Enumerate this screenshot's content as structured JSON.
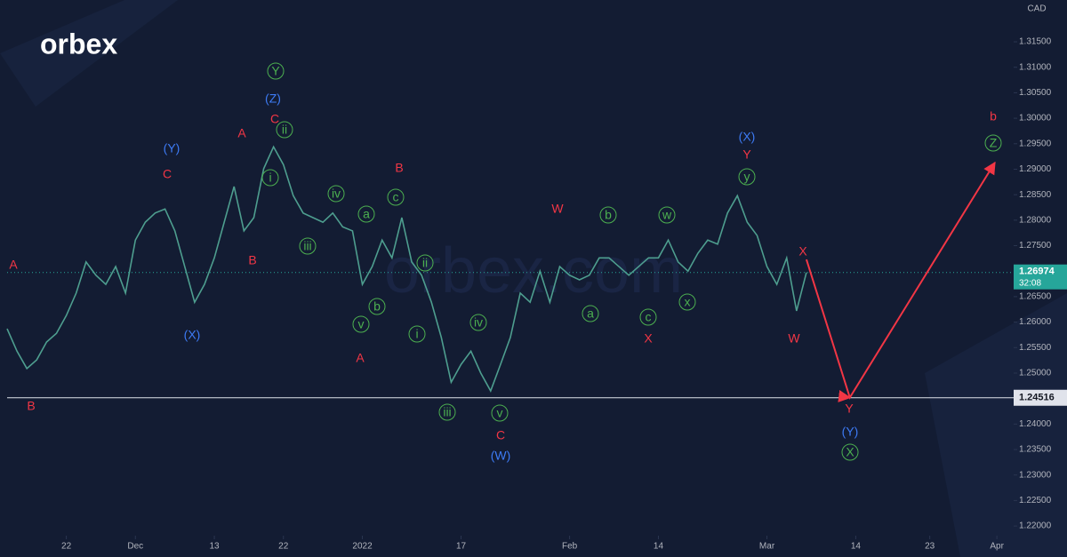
{
  "chart_data": {
    "type": "line",
    "brand": "orbex",
    "watermark": "orbex.com",
    "currency": "CAD",
    "x": [
      -6,
      -5,
      -4,
      -3,
      -2,
      -1,
      0,
      1,
      2,
      3,
      4,
      5,
      6,
      7,
      8,
      9,
      10,
      11,
      12,
      13,
      14,
      15,
      16,
      17,
      18,
      19,
      20,
      21,
      22,
      23,
      24,
      25,
      26,
      27,
      28,
      29,
      30,
      31,
      32,
      33,
      34,
      35,
      36,
      37,
      38,
      39,
      40,
      41,
      42,
      43,
      44,
      45,
      46,
      47,
      48,
      49,
      50,
      51,
      52,
      53,
      54,
      55,
      56,
      57,
      58,
      59,
      60,
      61,
      62,
      63,
      64,
      65,
      66,
      67,
      68,
      69,
      70,
      71,
      72,
      73,
      74,
      75
    ],
    "series": [
      {
        "color": "#4e9e8f",
        "values": [
          1.2587,
          1.2543,
          1.2509,
          1.2526,
          1.2561,
          1.2578,
          1.2613,
          1.2657,
          1.2718,
          1.2692,
          1.2674,
          1.2709,
          1.2657,
          1.2761,
          1.2796,
          1.2814,
          1.2822,
          1.2779,
          1.2709,
          1.2639,
          1.2674,
          1.2726,
          1.2796,
          1.2866,
          1.2779,
          1.2805,
          1.2901,
          1.2944,
          1.2909,
          1.2848,
          1.2814,
          1.2805,
          1.2796,
          1.2814,
          1.2787,
          1.2779,
          1.2674,
          1.2709,
          1.2761,
          1.2726,
          1.2805,
          1.2718,
          1.2692,
          1.2639,
          1.257,
          1.2482,
          1.2517,
          1.2543,
          1.25,
          1.2465,
          1.2517,
          1.257,
          1.2657,
          1.2639,
          1.27,
          1.2639,
          1.2709,
          1.2692,
          1.2683,
          1.2692,
          1.2726,
          1.2726,
          1.2709,
          1.2692,
          1.2709,
          1.2726,
          1.2726,
          1.2761,
          1.2718,
          1.27,
          1.2735,
          1.2761,
          1.2753,
          1.2814,
          1.2848,
          1.2796,
          1.277,
          1.2709,
          1.2674,
          1.2726,
          1.2622,
          1.26974
        ]
      }
    ],
    "forecast": {
      "color": "#f23645",
      "x": [
        75,
        79.4,
        94.1
      ],
      "values": [
        1.2723,
        1.2452,
        1.2913
      ]
    },
    "levels": [
      {
        "value": 1.24516,
        "label": "1.24516"
      }
    ],
    "current_price": {
      "value": 1.26974,
      "label": "1.26974",
      "countdown": "32:08",
      "color": "#26a69a"
    },
    "xlim": [
      -6,
      96
    ],
    "ylim": [
      1.2181,
      1.3232
    ],
    "xticks": [
      {
        "value": 0,
        "label": "22"
      },
      {
        "value": 7,
        "label": "Dec"
      },
      {
        "value": 15,
        "label": "13"
      },
      {
        "value": 22,
        "label": "22"
      },
      {
        "value": 30,
        "label": "2022"
      },
      {
        "value": 40,
        "label": "17"
      },
      {
        "value": 51,
        "label": "Feb"
      },
      {
        "value": 60,
        "label": "14"
      },
      {
        "value": 71,
        "label": "Mar"
      },
      {
        "value": 80,
        "label": "14"
      },
      {
        "value": 87.5,
        "label": "23"
      },
      {
        "value": 94.3,
        "label": "Apr"
      }
    ],
    "yticks": [
      {
        "value": 1.22,
        "label": "1.22000"
      },
      {
        "value": 1.225,
        "label": "1.22500"
      },
      {
        "value": 1.23,
        "label": "1.23000"
      },
      {
        "value": 1.235,
        "label": "1.23500"
      },
      {
        "value": 1.24,
        "label": "1.24000"
      },
      {
        "value": 1.25,
        "label": "1.25000"
      },
      {
        "value": 1.255,
        "label": "1.25500"
      },
      {
        "value": 1.26,
        "label": "1.26000"
      },
      {
        "value": 1.265,
        "label": "1.26500"
      },
      {
        "value": 1.275,
        "label": "1.27500"
      },
      {
        "value": 1.28,
        "label": "1.28000"
      },
      {
        "value": 1.285,
        "label": "1.28500"
      },
      {
        "value": 1.29,
        "label": "1.29000"
      },
      {
        "value": 1.295,
        "label": "1.29500"
      },
      {
        "value": 1.3,
        "label": "1.30000"
      },
      {
        "value": 1.305,
        "label": "1.30500"
      },
      {
        "value": 1.31,
        "label": "1.31000"
      },
      {
        "value": 1.315,
        "label": "1.31500"
      }
    ],
    "grid": false,
    "wave_labels": [
      {
        "text": "A",
        "color": "#f23645"
      },
      {
        "text": "B",
        "color": "#f23645"
      },
      {
        "text": "(Y)",
        "color": "#3d7bf5"
      },
      {
        "text": "C",
        "color": "#f23645"
      },
      {
        "text": "(X)",
        "color": "#3d7bf5"
      },
      {
        "text": "A",
        "color": "#f23645"
      },
      {
        "text": "B",
        "color": "#f23645"
      },
      {
        "text": "Y",
        "color": "#4caf50",
        "circled": true
      },
      {
        "text": "(Z)",
        "color": "#3d7bf5"
      },
      {
        "text": "C",
        "color": "#f23645"
      },
      {
        "text": "ii",
        "color": "#4caf50",
        "circled": true
      },
      {
        "text": "i",
        "color": "#4caf50",
        "circled": true
      },
      {
        "text": "iii",
        "color": "#4caf50",
        "circled": true
      },
      {
        "text": "iv",
        "color": "#4caf50",
        "circled": true
      },
      {
        "text": "a",
        "color": "#4caf50",
        "circled": true
      },
      {
        "text": "c",
        "color": "#4caf50",
        "circled": true
      },
      {
        "text": "B",
        "color": "#f23645"
      },
      {
        "text": "b",
        "color": "#4caf50",
        "circled": true
      },
      {
        "text": "v",
        "color": "#4caf50",
        "circled": true
      },
      {
        "text": "A",
        "color": "#f23645"
      },
      {
        "text": "ii",
        "color": "#4caf50",
        "circled": true
      },
      {
        "text": "i",
        "color": "#4caf50",
        "circled": true
      },
      {
        "text": "iv",
        "color": "#4caf50",
        "circled": true
      },
      {
        "text": "iii",
        "color": "#4caf50",
        "circled": true
      },
      {
        "text": "v",
        "color": "#4caf50",
        "circled": true
      },
      {
        "text": "C",
        "color": "#f23645"
      },
      {
        "text": "(W)",
        "color": "#3d7bf5"
      },
      {
        "text": "W",
        "color": "#f23645"
      },
      {
        "text": "b",
        "color": "#4caf50",
        "circled": true
      },
      {
        "text": "a",
        "color": "#4caf50",
        "circled": true
      },
      {
        "text": "w",
        "color": "#4caf50",
        "circled": true
      },
      {
        "text": "c",
        "color": "#4caf50",
        "circled": true
      },
      {
        "text": "X",
        "color": "#f23645"
      },
      {
        "text": "x",
        "color": "#4caf50",
        "circled": true
      },
      {
        "text": "(X)",
        "color": "#3d7bf5"
      },
      {
        "text": "Y",
        "color": "#f23645"
      },
      {
        "text": "y",
        "color": "#4caf50",
        "circled": true
      },
      {
        "text": "X",
        "color": "#f23645"
      },
      {
        "text": "W",
        "color": "#f23645"
      },
      {
        "text": "Y",
        "color": "#f23645"
      },
      {
        "text": "(Y)",
        "color": "#3d7bf5"
      },
      {
        "text": "X",
        "color": "#4caf50",
        "circled": true
      },
      {
        "text": "b",
        "color": "#f23645"
      },
      {
        "text": "Z",
        "color": "#4caf50",
        "circled": true
      }
    ]
  }
}
